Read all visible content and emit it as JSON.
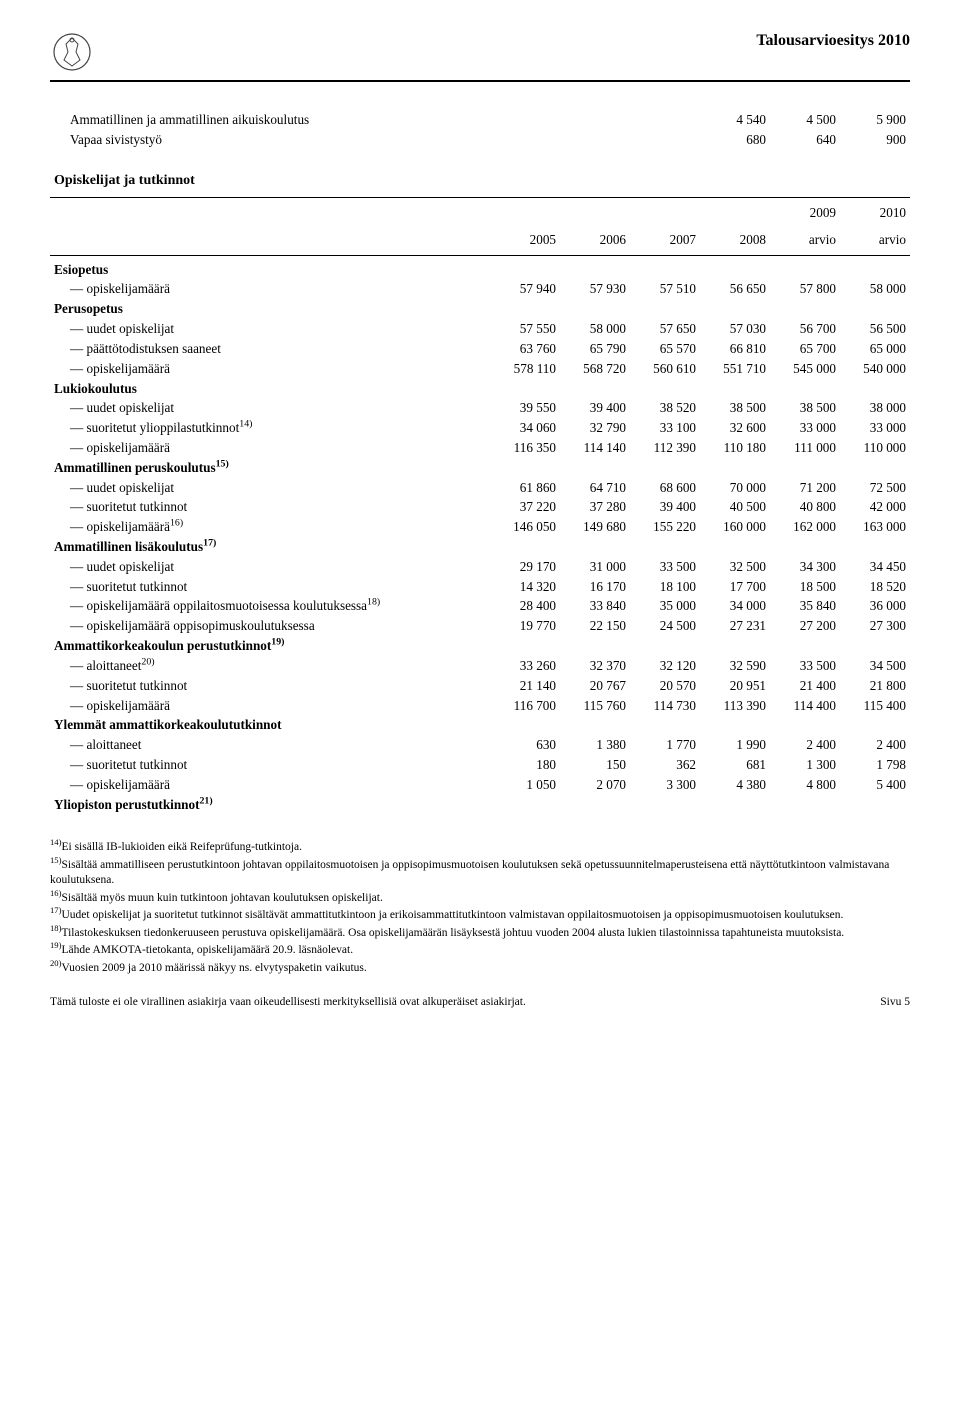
{
  "doc_title": "Talousarvioesitys 2010",
  "top_rows": [
    {
      "label": "Ammatillinen ja ammatillinen aikuiskoulutus",
      "vals": [
        "",
        "",
        "",
        "4 540",
        "4 500",
        "5 900"
      ]
    },
    {
      "label": "Vapaa sivistystyö",
      "vals": [
        "",
        "",
        "",
        "680",
        "640",
        "900"
      ]
    }
  ],
  "section_title": "Opiskelijat ja tutkinnot",
  "years_row1": [
    "",
    "",
    "",
    "",
    "2009",
    "2010"
  ],
  "years_row2": [
    "2005",
    "2006",
    "2007",
    "2008",
    "arvio",
    "arvio"
  ],
  "body_rows": [
    {
      "type": "small-spacer"
    },
    {
      "label": "Esiopetus",
      "bold": true
    },
    {
      "label": "— opiskelijamäärä",
      "vals": [
        "57 940",
        "57 930",
        "57 510",
        "56 650",
        "57 800",
        "58 000"
      ]
    },
    {
      "label": "Perusopetus",
      "bold": true
    },
    {
      "label": "— uudet opiskelijat",
      "vals": [
        "57 550",
        "58 000",
        "57 650",
        "57 030",
        "56 700",
        "56 500"
      ]
    },
    {
      "label": "— päättötodistuksen saaneet",
      "vals": [
        "63 760",
        "65 790",
        "65 570",
        "66 810",
        "65 700",
        "65 000"
      ]
    },
    {
      "label": "— opiskelijamäärä",
      "vals": [
        "578 110",
        "568 720",
        "560 610",
        "551 710",
        "545 000",
        "540 000"
      ]
    },
    {
      "label": "Lukiokoulutus",
      "bold": true
    },
    {
      "label": "— uudet opiskelijat",
      "vals": [
        "39 550",
        "39 400",
        "38 520",
        "38 500",
        "38 500",
        "38 000"
      ]
    },
    {
      "label": "— suoritetut ylioppilastutkinnot",
      "sup": "14)",
      "vals": [
        "34 060",
        "32 790",
        "33 100",
        "32 600",
        "33 000",
        "33 000"
      ]
    },
    {
      "label": "— opiskelijamäärä",
      "vals": [
        "116 350",
        "114 140",
        "112 390",
        "110 180",
        "111 000",
        "110 000"
      ]
    },
    {
      "label": "Ammatillinen peruskoulutus",
      "sup": "15)",
      "bold": true
    },
    {
      "label": "— uudet opiskelijat",
      "vals": [
        "61 860",
        "64 710",
        "68 600",
        "70 000",
        "71 200",
        "72 500"
      ]
    },
    {
      "label": "— suoritetut tutkinnot",
      "vals": [
        "37 220",
        "37 280",
        "39 400",
        "40 500",
        "40 800",
        "42 000"
      ]
    },
    {
      "label": "— opiskelijamäärä",
      "sup": "16)",
      "vals": [
        "146 050",
        "149 680",
        "155 220",
        "160 000",
        "162 000",
        "163 000"
      ]
    },
    {
      "label": "Ammatillinen lisäkoulutus",
      "sup": "17)",
      "bold": true
    },
    {
      "label": "— uudet opiskelijat",
      "vals": [
        "29 170",
        "31 000",
        "33 500",
        "32 500",
        "34 300",
        "34 450"
      ]
    },
    {
      "label": "— suoritetut tutkinnot",
      "vals": [
        "14 320",
        "16 170",
        "18 100",
        "17 700",
        "18 500",
        "18 520"
      ]
    },
    {
      "label": "— opiskelijamäärä oppilaitosmuotoisessa koulutuksessa",
      "sup": "18)",
      "vals": [
        "28 400",
        "33 840",
        "35 000",
        "34 000",
        "35 840",
        "36 000"
      ]
    },
    {
      "label": "— opiskelijamäärä oppisopimuskoulutuksessa",
      "vals": [
        "19 770",
        "22 150",
        "24 500",
        "27 231",
        "27 200",
        "27 300"
      ]
    },
    {
      "label": "Ammattikorkeakoulun perustutkinnot",
      "sup": "19)",
      "bold": true
    },
    {
      "label": "— aloittaneet",
      "sup": "20)",
      "vals": [
        "33 260",
        "32 370",
        "32 120",
        "32 590",
        "33 500",
        "34 500"
      ]
    },
    {
      "label": "— suoritetut tutkinnot",
      "vals": [
        "21 140",
        "20 767",
        "20 570",
        "20 951",
        "21 400",
        "21 800"
      ]
    },
    {
      "label": "— opiskelijamäärä",
      "vals": [
        "116 700",
        "115 760",
        "114 730",
        "113 390",
        "114 400",
        "115 400"
      ]
    },
    {
      "label": "Ylemmät ammattikorkeakoulututkinnot",
      "bold": true
    },
    {
      "label": "— aloittaneet",
      "vals": [
        "630",
        "1 380",
        "1 770",
        "1 990",
        "2 400",
        "2 400"
      ]
    },
    {
      "label": "— suoritetut tutkinnot",
      "vals": [
        "180",
        "150",
        "362",
        "681",
        "1 300",
        "1 798"
      ]
    },
    {
      "label": "— opiskelijamäärä",
      "vals": [
        "1 050",
        "2 070",
        "3 300",
        "4 380",
        "4 800",
        "5 400"
      ]
    },
    {
      "label": "Yliopiston perustutkinnot",
      "sup": "21)",
      "bold": true
    }
  ],
  "footnotes": [
    {
      "n": "14)",
      "t": "Ei sisällä IB-lukioiden eikä Reifeprüfung-tutkintoja."
    },
    {
      "n": "15)",
      "t": "Sisältää ammatilliseen perustutkintoon johtavan oppilaitosmuotoisen ja oppisopimusmuotoisen koulutuksen sekä opetussuunnitelmaperusteisena että näyttötutkintoon valmistavana koulutuksena."
    },
    {
      "n": "16)",
      "t": "Sisältää myös muun kuin tutkintoon johtavan koulutuksen opiskelijat."
    },
    {
      "n": "17)",
      "t": "Uudet opiskelijat ja suoritetut tutkinnot sisältävät ammattitutkintoon ja erikoisammattitutkintoon valmistavan oppilaitosmuotoisen ja oppisopimusmuotoisen koulutuksen."
    },
    {
      "n": "18)",
      "t": "Tilastokeskuksen tiedonkeruuseen perustuva opiskelijamäärä. Osa opiskelijamäärän lisäyksestä johtuu vuoden 2004 alusta lukien tilastoinnissa tapahtuneista muutoksista."
    },
    {
      "n": "19)",
      "t": "Lähde AMKOTA-tietokanta, opiskelijamäärä 20.9. läsnäolevat."
    },
    {
      "n": "20)",
      "t": "Vuosien 2009 ja 2010 määrissä näkyy ns. elvytyspaketin vaikutus."
    }
  ],
  "footer_left": "Tämä tuloste ei ole virallinen asiakirja vaan oikeudellisesti merkityksellisiä ovat alkuperäiset asiakirjat.",
  "footer_right": "Sivu 5"
}
